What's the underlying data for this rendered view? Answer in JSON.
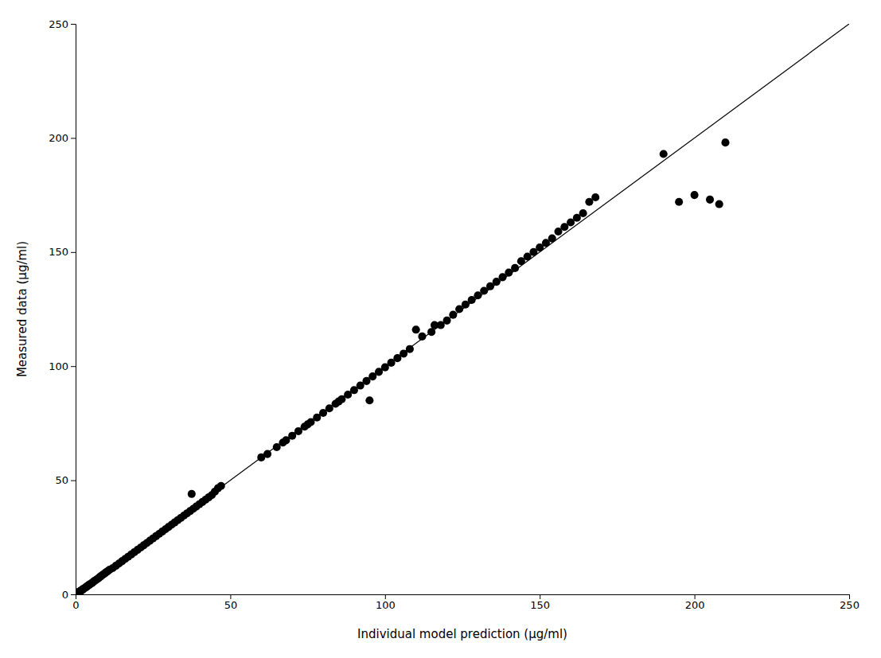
{
  "chart_data": {
    "type": "scatter",
    "xlabel": "Individual model prediction (μg/ml)",
    "ylabel": "Measured data (μg/ml)",
    "xlim": [
      0,
      250
    ],
    "ylim": [
      0,
      250
    ],
    "xticks": [
      0,
      50,
      100,
      150,
      200,
      250
    ],
    "yticks": [
      0,
      50,
      100,
      150,
      200,
      250
    ],
    "grid": false,
    "series": [
      {
        "type": "scatter",
        "color": "#000000",
        "marker": "circle",
        "x": [
          0.3,
          0.5,
          0.7,
          0.8,
          0.9,
          1.0,
          1.1,
          1.2,
          1.3,
          1.5,
          1.6,
          1.8,
          2.0,
          2.2,
          2.3,
          2.5,
          3.0,
          3.2,
          3.5,
          3.8,
          4.0,
          4.2,
          4.5,
          5.0,
          5.3,
          5.7,
          6.0,
          6.5,
          7.0,
          7.5,
          8.0,
          8.5,
          9.0,
          9.5,
          10.0,
          10.5,
          11.0,
          12.0,
          13.0,
          14.0,
          15.0,
          16.0,
          17.0,
          18.0,
          19.0,
          20.0,
          21.0,
          22.0,
          23.0,
          24.0,
          25.0,
          26.0,
          27.0,
          28.0,
          29.0,
          30.0,
          31.0,
          32.0,
          33.0,
          34.0,
          35.0,
          36.0,
          37.0,
          37.5,
          38.0,
          39.0,
          40.0,
          41.0,
          42.0,
          43.0,
          44.0,
          45.0,
          46.0,
          47.0,
          60.0,
          62.0,
          65.0,
          67.0,
          68.0,
          70.0,
          72.0,
          74.0,
          75.0,
          76.0,
          78.0,
          80.0,
          82.0,
          84.0,
          85.0,
          86.0,
          88.0,
          90.0,
          92.0,
          94.0,
          95.0,
          96.0,
          98.0,
          100.0,
          102.0,
          104.0,
          106.0,
          108.0,
          110.0,
          112.0,
          115.0,
          116.0,
          118.0,
          120.0,
          122.0,
          124.0,
          126.0,
          128.0,
          130.0,
          132.0,
          134.0,
          136.0,
          138.0,
          140.0,
          142.0,
          144.0,
          146.0,
          148.0,
          150.0,
          152.0,
          154.0,
          156.0,
          158.0,
          160.0,
          162.0,
          164.0,
          166.0,
          168.0,
          190.0,
          195.0,
          200.0,
          205.0,
          208.0,
          210.0
        ],
        "values": [
          0.3,
          0.5,
          0.6,
          0.7,
          0.8,
          1.0,
          1.0,
          1.1,
          1.2,
          1.3,
          1.5,
          1.7,
          1.8,
          2.0,
          2.2,
          2.4,
          2.8,
          3.0,
          3.3,
          3.6,
          3.8,
          4.0,
          4.3,
          4.7,
          5.0,
          5.4,
          5.8,
          6.2,
          6.7,
          7.2,
          7.8,
          8.3,
          8.8,
          9.3,
          9.8,
          10.3,
          10.8,
          11.5,
          12.5,
          13.5,
          14.5,
          15.5,
          16.5,
          17.5,
          18.5,
          19.5,
          20.5,
          21.5,
          22.5,
          23.5,
          24.5,
          25.5,
          26.5,
          27.5,
          28.5,
          29.5,
          30.5,
          31.5,
          32.5,
          33.5,
          34.5,
          35.5,
          36.5,
          44.0,
          37.5,
          38.5,
          39.5,
          40.5,
          41.5,
          42.5,
          43.5,
          45.0,
          46.5,
          47.5,
          60.0,
          61.5,
          64.5,
          66.5,
          67.5,
          69.5,
          71.5,
          73.5,
          74.5,
          75.5,
          77.5,
          79.5,
          81.5,
          83.5,
          84.5,
          85.5,
          87.5,
          89.5,
          91.5,
          93.5,
          85.0,
          95.5,
          97.5,
          99.5,
          101.5,
          103.5,
          105.5,
          107.5,
          116.0,
          113.0,
          115.0,
          118.0,
          118.0,
          120.0,
          122.5,
          125.0,
          127.0,
          129.0,
          131.0,
          133.0,
          135.0,
          137.0,
          139.0,
          141.0,
          143.0,
          146.0,
          148.0,
          150.0,
          152.0,
          154.0,
          156.0,
          159.0,
          161.0,
          163.0,
          165.0,
          167.0,
          172.0,
          174.0,
          193.0,
          172.0,
          175.0,
          173.0,
          171.0,
          198.0
        ]
      },
      {
        "type": "line",
        "color": "#000000",
        "line_style": "solid",
        "x": [
          0,
          250
        ],
        "values": [
          0,
          250
        ]
      }
    ]
  }
}
